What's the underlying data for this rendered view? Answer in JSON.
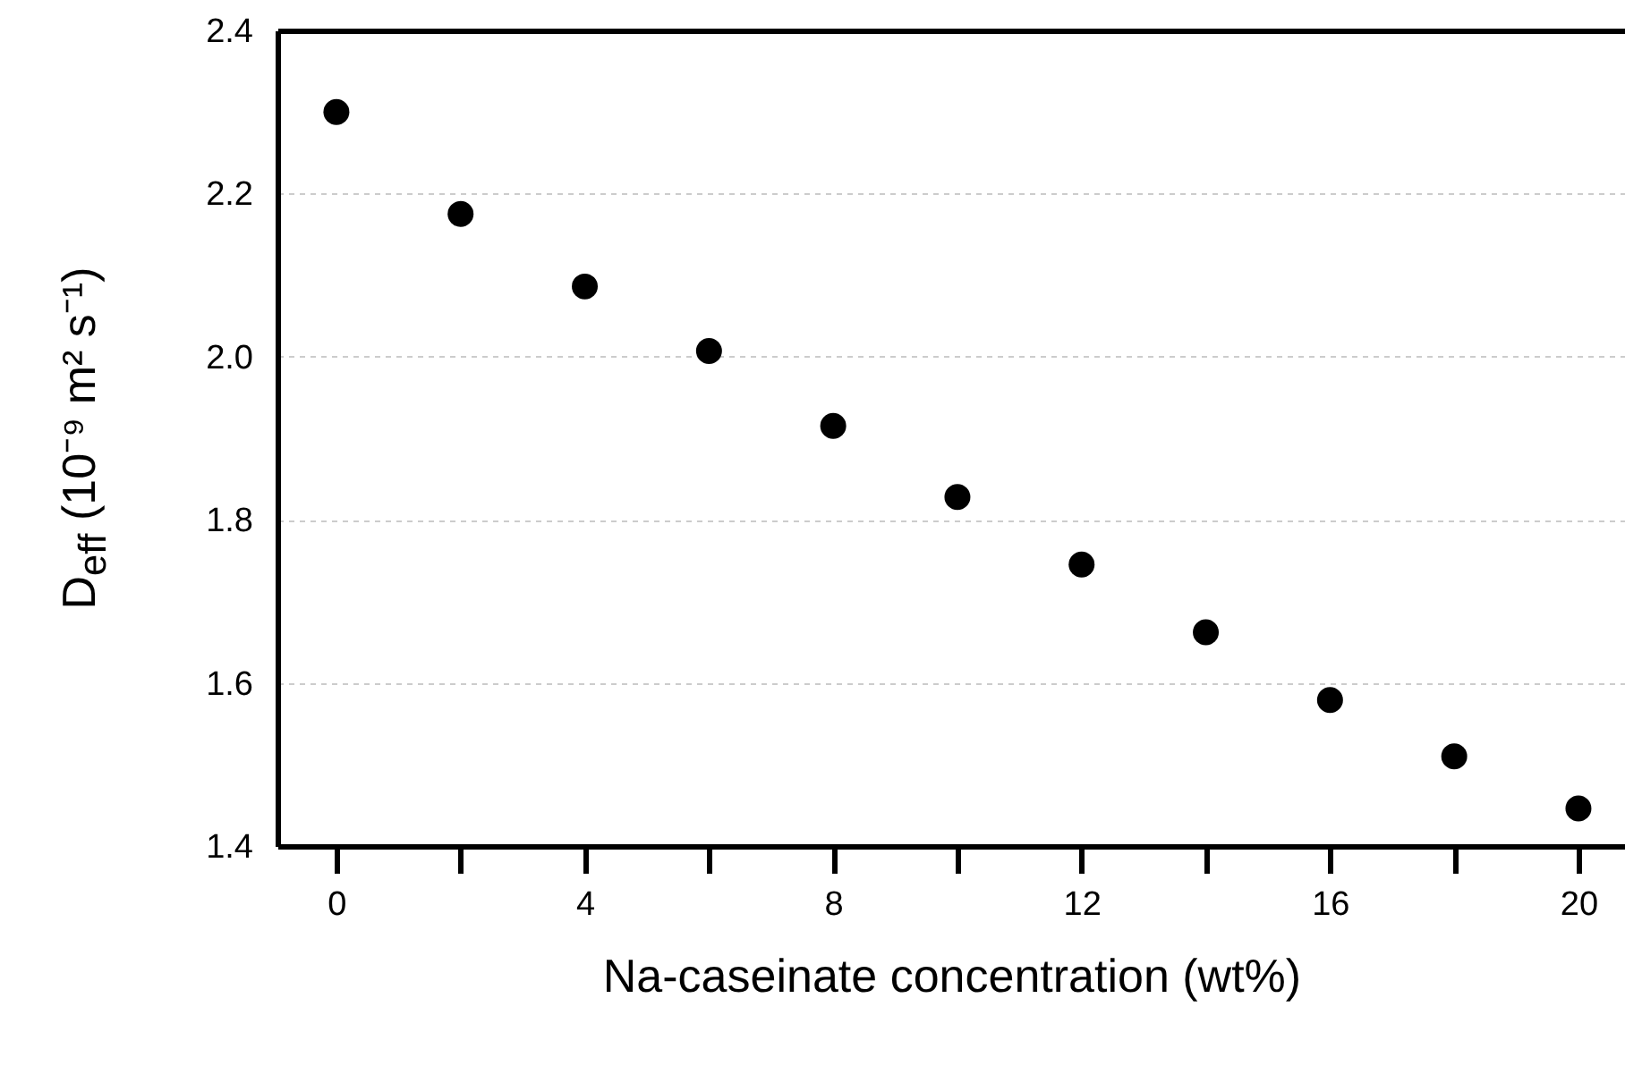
{
  "chart_data": {
    "type": "scatter",
    "xlabel": "Na-caseinate concentration (wt%)",
    "ylabel": "D$_{eff}$ (10⁻⁹ m² s⁻¹)",
    "x": [
      0,
      2,
      4,
      6,
      8,
      10,
      12,
      14,
      16,
      18,
      20
    ],
    "values": [
      2.3,
      2.175,
      2.086,
      2.007,
      1.915,
      1.828,
      1.745,
      1.662,
      1.579,
      1.51,
      1.446
    ],
    "color": "#000000",
    "marker": "circle",
    "grid": "y",
    "xlim": [
      -0.95,
      20.75
    ],
    "xticks": [
      0,
      {
        "value": 2,
        "label": null
      },
      4,
      {
        "value": 6,
        "label": null
      },
      8,
      {
        "value": 10,
        "label": null
      },
      12,
      {
        "value": 14,
        "label": null
      },
      16,
      {
        "value": 18,
        "label": null
      },
      20
    ],
    "ylim": [
      1.4,
      2.4
    ],
    "yticks": [
      {
        "value": 1.4,
        "label": "1.4"
      },
      {
        "value": 1.6,
        "label": "1.6"
      },
      {
        "value": 1.8,
        "label": "1.8"
      },
      {
        "value": 2.0,
        "label": "2.0"
      },
      {
        "value": 2.2,
        "label": "2.2"
      },
      {
        "value": 2.4,
        "label": "2.4"
      }
    ]
  }
}
